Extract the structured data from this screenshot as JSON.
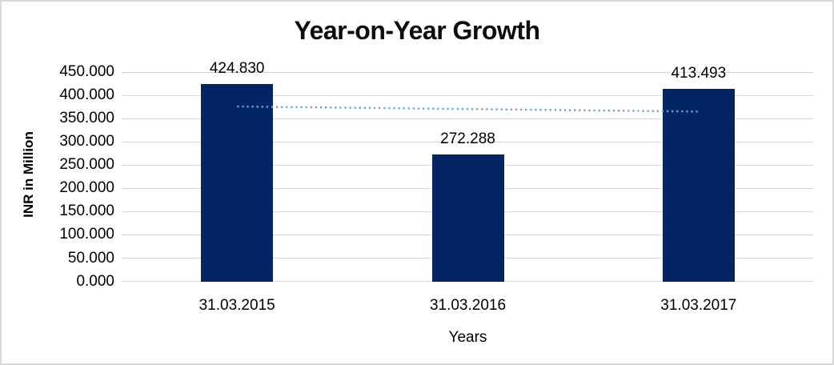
{
  "frame": {
    "border_color": "#d7d7d7",
    "background": "#ffffff"
  },
  "chart_data": {
    "type": "bar",
    "title": "Year-on-Year Growth",
    "categories": [
      "31.03.2015",
      "31.03.2016",
      "31.03.2017"
    ],
    "values": [
      424.83,
      272.288,
      413.493
    ],
    "data_labels": [
      "424.830",
      "272.288",
      "413.493"
    ],
    "xlabel": "Years",
    "ylabel": "INR in Million",
    "ylim": [
      0,
      450
    ],
    "ytick_interval": 50,
    "ytick_labels": [
      "450.000",
      "400.000",
      "350.000",
      "300.000",
      "250.000",
      "200.000",
      "150.000",
      "100.000",
      "50.000",
      "0.000"
    ],
    "grid": true,
    "legend": "none",
    "bar_color": "#032564",
    "gridline_color": "#d9d9d9",
    "text_color": "#000000",
    "trendline": {
      "type": "linear",
      "style": "dotted",
      "color": "#6fa0d8",
      "start_value": 376,
      "end_value": 365
    }
  }
}
